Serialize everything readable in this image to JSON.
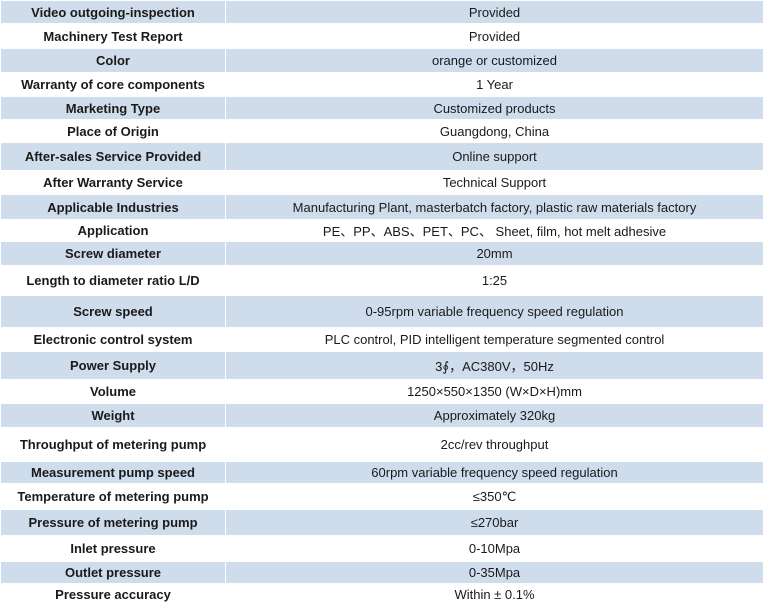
{
  "rows": [
    {
      "label": "Video outgoing-inspection",
      "value": "Provided",
      "shade": true
    },
    {
      "label": "Machinery Test Report",
      "value": "Provided",
      "shade": false
    },
    {
      "label": "Color",
      "value": "orange or customized",
      "shade": true
    },
    {
      "label": "Warranty of core components",
      "value": "1 Year",
      "shade": false
    },
    {
      "label": "Marketing Type",
      "value": "Customized products",
      "shade": true
    },
    {
      "label": "Place of Origin",
      "value": "Guangdong, China",
      "shade": false
    },
    {
      "label": "After-sales Service Provided",
      "value": "Online support",
      "shade": true
    },
    {
      "label": "After Warranty Service",
      "value": "Technical Support",
      "shade": false
    },
    {
      "label": "Applicable Industries",
      "value": "Manufacturing Plant, masterbatch factory, plastic raw materials factory",
      "shade": true
    },
    {
      "label": "Application",
      "value": "PE、PP、ABS、PET、PC、 Sheet, film, hot melt adhesive",
      "shade": false
    },
    {
      "label": "Screw diameter",
      "value": "20mm",
      "shade": true
    },
    {
      "label": "Length to diameter ratio L/D",
      "value": "1:25",
      "shade": false
    },
    {
      "label": "Screw speed",
      "value": "0-95rpm variable frequency speed regulation",
      "shade": true
    },
    {
      "label": "Electronic control system",
      "value": "PLC control, PID intelligent temperature segmented control",
      "shade": false
    },
    {
      "label": "Power Supply",
      "value": "3∮，AC380V，50Hz",
      "shade": true
    },
    {
      "label": "Volume",
      "value": "1250×550×1350 (W×D×H)mm",
      "shade": false
    },
    {
      "label": "Weight",
      "value": "Approximately 320kg",
      "shade": true
    },
    {
      "label": "Throughput of metering pump",
      "value": "2cc/rev throughput",
      "shade": false
    },
    {
      "label": "Measurement pump speed",
      "value": "60rpm variable frequency speed regulation",
      "shade": true
    },
    {
      "label": "Temperature of metering pump",
      "value": "≤350℃",
      "shade": false
    },
    {
      "label": "Pressure of metering pump",
      "value": "≤270bar",
      "shade": true
    },
    {
      "label": "Inlet pressure",
      "value": "0-10Mpa",
      "shade": false
    },
    {
      "label": "Outlet pressure",
      "value": "0-35Mpa",
      "shade": true
    },
    {
      "label": "Pressure accuracy",
      "value": "Within ± 0.1%",
      "shade": false
    }
  ]
}
